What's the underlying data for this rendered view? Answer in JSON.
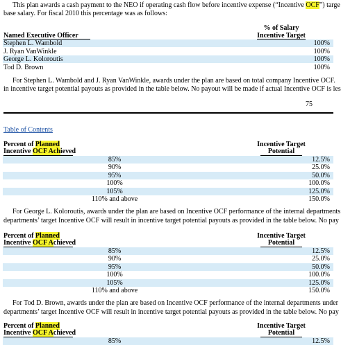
{
  "intro": {
    "line1": [
      "This plan awards a cash payment to the NEO if operating cash flow before incentive expense (“Incentive ",
      "OCF",
      "”) targe"
    ],
    "line2": "base salary. For fiscal 2010 this percentage was as follows:"
  },
  "salary_table": {
    "header": {
      "officer": "Named Executive Officer",
      "target_line1": "% of Salary",
      "target_line2": "Incentive Target"
    },
    "rows": [
      [
        "Stephen L. Wambold",
        "100%"
      ],
      [
        "J. Ryan VanWinkle",
        "100%"
      ],
      [
        "George L. Koloroutis",
        "100%"
      ],
      [
        "Tod D. Brown",
        "100%"
      ]
    ]
  },
  "paragraph_2": [
    "For Stephen L. Wambold and J. Ryan VanWinkle, awards under the plan are based on total company Incentive OCF.",
    "in incentive target potential payouts as provided in the table below. No payout will be made if actual Incentive OCF is les"
  ],
  "page_number": "75",
  "toc_link": "Table of Contents",
  "payout_tables": [
    {
      "header": {
        "left_line1": [
          "Percent of ",
          "Planned"
        ],
        "left_line2": [
          "Incentive ",
          "OCF Ach",
          "ieved"
        ],
        "right_line1": "Incentive Target",
        "right_line2": "Potential"
      },
      "rows": [
        [
          "85%",
          "12.5%"
        ],
        [
          "90%",
          "25.0%"
        ],
        [
          "95%",
          "50.0%"
        ],
        [
          "100%",
          "100.0%"
        ],
        [
          "105%",
          "125.0%"
        ],
        [
          "110% and above",
          "150.0%"
        ]
      ]
    },
    {
      "header": {
        "left_line1": [
          "Percent of ",
          "Planned"
        ],
        "left_line2": [
          "Incentive ",
          "OCF A",
          "chieved"
        ],
        "right_line1": "Incentive Target",
        "right_line2": "Potential"
      },
      "rows": [
        [
          "85%",
          "12.5%"
        ],
        [
          "90%",
          "25.0%"
        ],
        [
          "95%",
          "50.0%"
        ],
        [
          "100%",
          "100.0%"
        ],
        [
          "105%",
          "125.0%"
        ],
        [
          "110% and above",
          "150.0%"
        ]
      ]
    },
    {
      "header": {
        "left_line1": [
          "Percent of ",
          "Planned"
        ],
        "left_line2": [
          "Incentive ",
          "OCF A",
          "chieved"
        ],
        "right_line1": "Incentive Target",
        "right_line2": "Potential"
      },
      "rows": [
        [
          "85%",
          "12.5%"
        ]
      ]
    }
  ],
  "paragraph_3": [
    "For George L. Koloroutis, awards under the plan are based on Incentive OCF performance of the internal departments",
    "departments’ target Incentive OCF will result in incentive target potential payouts as provided in the table below. No pay"
  ],
  "paragraph_4": [
    "For Tod D. Brown, awards under the plan are based on Incentive OCF performance of the internal departments under",
    "departments’ target Incentive OCF will result in incentive target potential payouts as provided in the table below. No pay"
  ]
}
